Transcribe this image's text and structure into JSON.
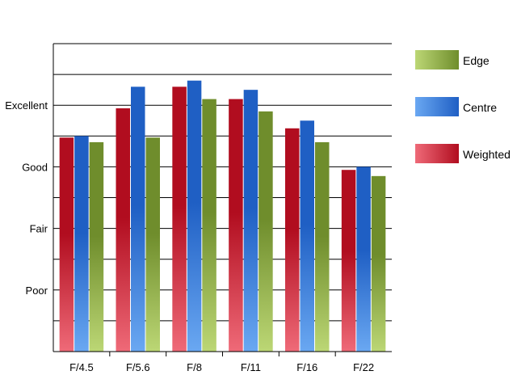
{
  "chart_data": {
    "type": "bar",
    "categories": [
      "F/4.5",
      "F/5.6",
      "F/8",
      "F/11",
      "F/16",
      "F/22"
    ],
    "series": [
      {
        "name": "Weighted",
        "values": [
          6.95,
          7.9,
          8.6,
          8.2,
          7.25,
          5.9
        ]
      },
      {
        "name": "Centre",
        "values": [
          7.0,
          8.6,
          8.8,
          8.5,
          7.5,
          6.0
        ]
      },
      {
        "name": "Edge",
        "values": [
          6.8,
          6.95,
          8.2,
          7.8,
          6.8,
          5.7
        ]
      }
    ],
    "ylim": [
      0,
      10
    ],
    "y_ticks": [
      {
        "value": 2,
        "label": "Poor"
      },
      {
        "value": 4,
        "label": "Fair"
      },
      {
        "value": 6,
        "label": "Good"
      },
      {
        "value": 8,
        "label": "Excellent"
      }
    ],
    "gridlines": true,
    "legend_position": "right",
    "legend_order": [
      "Edge",
      "Centre",
      "Weighted"
    ],
    "colors": {
      "Weighted": {
        "top": "#b10d1f",
        "bottom": "#ef6a78"
      },
      "Centre": {
        "top": "#1f5fc4",
        "bottom": "#6aa8f2"
      },
      "Edge": {
        "top": "#6f8d2c",
        "bottom": "#bcd775"
      }
    }
  }
}
